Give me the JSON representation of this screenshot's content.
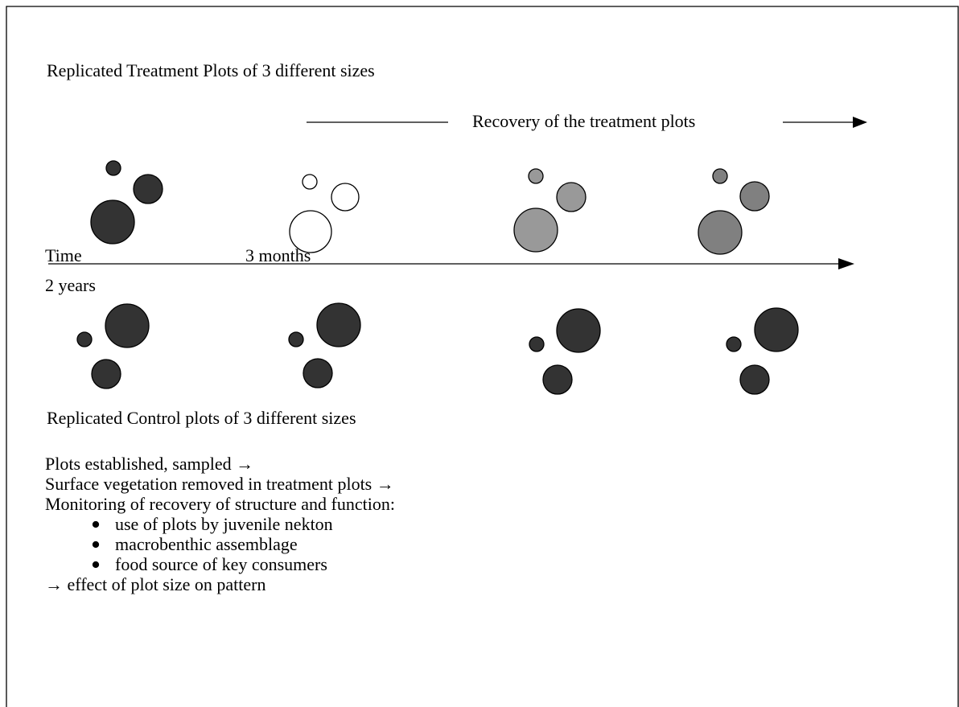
{
  "title": "Replicated Treatment Plots of 3 different sizes",
  "recovery_label": "Recovery of the treatment plots",
  "timeline": {
    "start": "Time",
    "mark": "3 months",
    "end": "2 years"
  },
  "control_label": "Replicated Control plots of 3 different sizes",
  "notes": [
    "Plots established, sampled →",
    "Surface vegetation removed in treatment plots →",
    "Monitoring of recovery of structure and function:"
  ],
  "bullets": [
    "use of plots by juvenile nekton",
    "macrobenthic assemblage",
    "food source of key consumers"
  ],
  "conclusion": "→ effect of plot size on pattern"
}
